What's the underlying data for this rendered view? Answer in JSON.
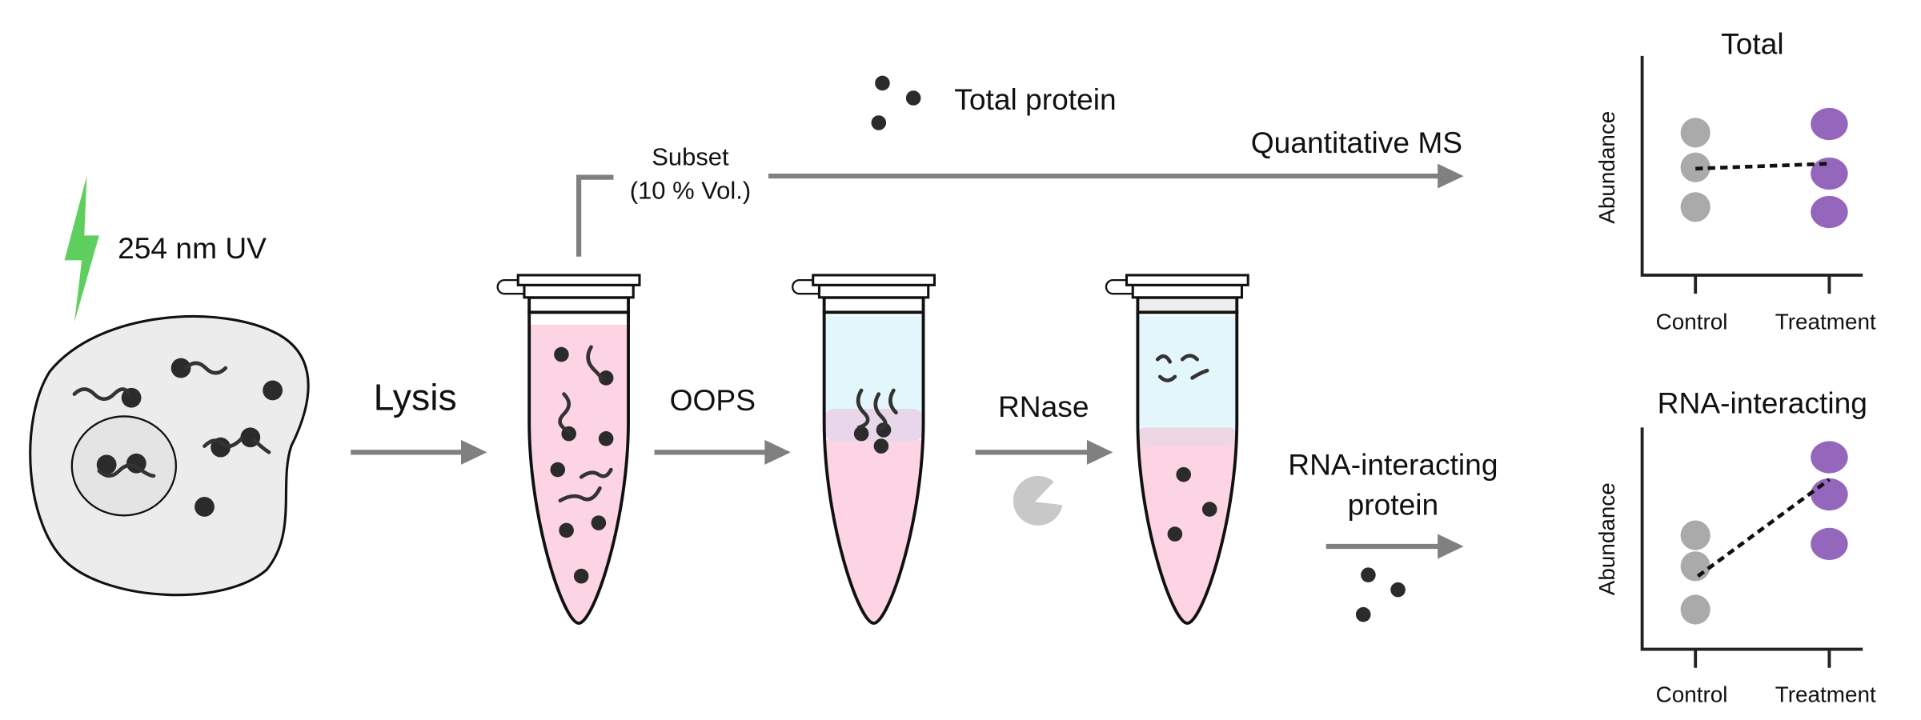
{
  "labels": {
    "uv": "254 nm UV",
    "lysis": "Lysis",
    "oops": "OOPS",
    "rnase": "RNase",
    "subset": "Subset",
    "subset_vol": "(10 % Vol.)",
    "total_protein": "Total protein",
    "quant_ms": "Quantitative MS",
    "rna_protein_line1": "RNA-interacting",
    "rna_protein_line2": "protein"
  },
  "plots": [
    {
      "title": "Total",
      "ylabel": "Abundance",
      "categories": [
        "Control",
        "Treatment"
      ]
    },
    {
      "title": "RNA-interacting",
      "ylabel": "Abundance",
      "categories": [
        "Control",
        "Treatment"
      ]
    }
  ]
}
